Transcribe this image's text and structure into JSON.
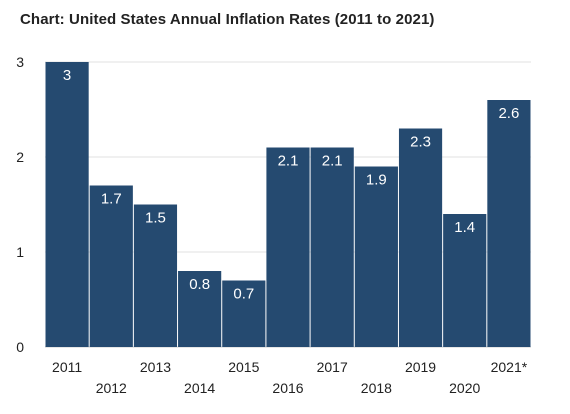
{
  "title": "Chart: United States Annual Inflation Rates (2011 to 2021)",
  "chart_data": {
    "type": "bar",
    "title": "Chart: United States Annual Inflation Rates (2011 to 2021)",
    "categories": [
      "2011",
      "2012",
      "2013",
      "2014",
      "2015",
      "2016",
      "2017",
      "2018",
      "2019",
      "2020",
      "2021*"
    ],
    "values": [
      3,
      1.7,
      1.5,
      0.8,
      0.7,
      2.1,
      2.1,
      1.9,
      2.3,
      1.4,
      2.6
    ],
    "value_labels": [
      "3",
      "1.7",
      "1.5",
      "0.8",
      "0.7",
      "2.1",
      "2.1",
      "1.9",
      "2.3",
      "1.4",
      "2.6"
    ],
    "y_ticks": [
      "0",
      "1",
      "2",
      "3"
    ],
    "ylim": [
      0,
      3
    ],
    "xlabel": "",
    "ylabel": "",
    "grid": true,
    "legend": "none",
    "colors": {
      "bar": "#254a70",
      "bar_label": "#ffffff",
      "grid": "#e2e2e2",
      "tick_text": "#222222"
    }
  }
}
